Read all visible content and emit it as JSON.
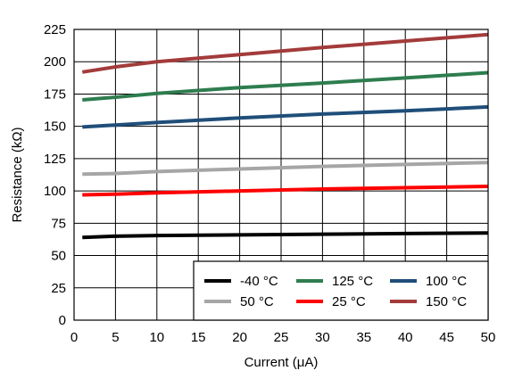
{
  "chart_data": {
    "type": "line",
    "xlabel": "Current (μA)",
    "ylabel": "Resistance (kΩ)",
    "xlim": [
      0,
      50
    ],
    "ylim": [
      0,
      225
    ],
    "xticks": [
      0,
      5,
      10,
      15,
      20,
      25,
      30,
      35,
      40,
      45,
      50
    ],
    "yticks": [
      0,
      25,
      50,
      75,
      100,
      125,
      150,
      175,
      200,
      225
    ],
    "grid": true,
    "legend_position": "bottom-right",
    "series": [
      {
        "name": "-40 °C",
        "color": "#000000",
        "x": [
          1,
          5,
          10,
          20,
          30,
          40,
          50
        ],
        "y": [
          64,
          65,
          65.5,
          66,
          66.5,
          67,
          67.5
        ]
      },
      {
        "name": "25 °C",
        "color": "#ff0000",
        "x": [
          1,
          5,
          10,
          20,
          30,
          40,
          50
        ],
        "y": [
          97,
          97.5,
          98.5,
          100,
          101.5,
          102.5,
          103.5
        ]
      },
      {
        "name": "50 °C",
        "color": "#a6a6a6",
        "x": [
          1,
          5,
          10,
          20,
          30,
          40,
          50
        ],
        "y": [
          113,
          113.5,
          115,
          117,
          119,
          120.5,
          122
        ]
      },
      {
        "name": "100 °C",
        "color": "#1f4e79",
        "x": [
          1,
          5,
          10,
          20,
          30,
          40,
          50
        ],
        "y": [
          149.5,
          151,
          153,
          156.5,
          159.5,
          162,
          165
        ]
      },
      {
        "name": "125 °C",
        "color": "#2e7d4f",
        "x": [
          1,
          5,
          10,
          20,
          30,
          40,
          50
        ],
        "y": [
          170.5,
          172.5,
          175.5,
          180,
          183.5,
          187.5,
          191.5
        ]
      },
      {
        "name": "150 °C",
        "color": "#a33b3b",
        "x": [
          1,
          5,
          10,
          20,
          30,
          40,
          50
        ],
        "y": [
          192,
          196,
          200,
          205.5,
          211,
          216,
          221
        ]
      }
    ],
    "legend_order": [
      0,
      2,
      4,
      1,
      3,
      5
    ]
  }
}
